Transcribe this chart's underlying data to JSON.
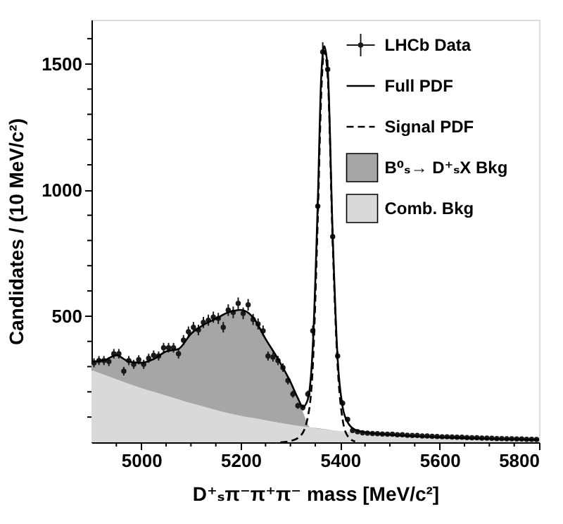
{
  "chart_data": {
    "type": "scatter",
    "xlabel": "D⁺ₛπ⁻π⁺π⁻ mass [MeV/c²]",
    "ylabel": "Candidates / (10 MeV/c²)",
    "xlim": [
      4900,
      5800
    ],
    "ylim": [
      0,
      1675
    ],
    "xticks": [
      {
        "value": 4950,
        "label": null
      },
      5000,
      {
        "value": 5050,
        "label": null
      },
      {
        "value": 5100,
        "label": null
      },
      {
        "value": 5150,
        "label": null
      },
      5200,
      {
        "value": 5250,
        "label": null
      },
      {
        "value": 5300,
        "label": null
      },
      {
        "value": 5350,
        "label": null
      },
      5400,
      {
        "value": 5450,
        "label": null
      },
      {
        "value": 5500,
        "label": null
      },
      {
        "value": 5550,
        "label": null
      },
      5600,
      {
        "value": 5650,
        "label": null
      },
      {
        "value": 5700,
        "label": null
      },
      {
        "value": 5750,
        "label": null
      },
      5800
    ],
    "yticks": [
      {
        "value": 100,
        "label": null
      },
      {
        "value": 200,
        "label": null
      },
      {
        "value": 300,
        "label": null
      },
      {
        "value": 400,
        "label": null
      },
      500,
      {
        "value": 600,
        "label": null
      },
      {
        "value": 700,
        "label": null
      },
      {
        "value": 800,
        "label": null
      },
      {
        "value": 900,
        "label": null
      },
      1000,
      {
        "value": 1100,
        "label": null
      },
      {
        "value": 1200,
        "label": null
      },
      {
        "value": 1300,
        "label": null
      },
      {
        "value": 1400,
        "label": null
      },
      1500,
      {
        "value": 1600,
        "label": null
      }
    ],
    "legend": "top right",
    "stacked": true,
    "series": [
      {
        "name": "LHCb Data",
        "color": "#1a1a1a",
        "marker": "circle",
        "x": [
          4905,
          4915,
          4925,
          4935,
          4945,
          4955,
          4965,
          4975,
          4985,
          4995,
          5005,
          5015,
          5025,
          5035,
          5045,
          5055,
          5065,
          5075,
          5085,
          5095,
          5105,
          5115,
          5125,
          5135,
          5145,
          5155,
          5165,
          5175,
          5185,
          5195,
          5205,
          5215,
          5225,
          5235,
          5245,
          5255,
          5265,
          5275,
          5285,
          5295,
          5305,
          5315,
          5325,
          5335,
          5345,
          5355,
          5365,
          5375,
          5385,
          5395,
          5405,
          5415,
          5425,
          5435,
          5445,
          5455,
          5465,
          5475,
          5485,
          5495,
          5505,
          5515,
          5525,
          5535,
          5545,
          5555,
          5565,
          5575,
          5585,
          5595,
          5605,
          5615,
          5625,
          5635,
          5645,
          5655,
          5665,
          5675,
          5685,
          5695,
          5705,
          5715,
          5725,
          5735,
          5745,
          5755,
          5765,
          5775,
          5785,
          5795
        ],
        "values": [
          315,
          324,
          324,
          320,
          351,
          351,
          282,
          324,
          309,
          327,
          309,
          333,
          345,
          342,
          375,
          375,
          375,
          351,
          405,
          438,
          456,
          445,
          475,
          484,
          496,
          491,
          456,
          524,
          515,
          551,
          511,
          545,
          487,
          469,
          442,
          342,
          338,
          324,
          296,
          245,
          191,
          145,
          138,
          191,
          442,
          936,
          1547,
          1478,
          815,
          342,
          155,
          91,
          47,
          42,
          38,
          36,
          35,
          34,
          33,
          32,
          32,
          30,
          30,
          28,
          27,
          27,
          25,
          25,
          24,
          23,
          22,
          22,
          21,
          20,
          20,
          19,
          18,
          18,
          17,
          17,
          16,
          15,
          15,
          14,
          14,
          13,
          13,
          12,
          12,
          11
        ],
        "errors": [
          18,
          18,
          18,
          18,
          19,
          19,
          17,
          18,
          18,
          18,
          18,
          18,
          19,
          18,
          19,
          19,
          19,
          19,
          20,
          21,
          21,
          21,
          22,
          22,
          22,
          22,
          21,
          23,
          23,
          23,
          23,
          23,
          22,
          22,
          21,
          18,
          18,
          18,
          17,
          16,
          14,
          12,
          12,
          14,
          21,
          31,
          39,
          38,
          29,
          18,
          12,
          10,
          7,
          6,
          6,
          6,
          6,
          6,
          6,
          6,
          6,
          5,
          5,
          5,
          5,
          5,
          5,
          5,
          5,
          5,
          5,
          5,
          5,
          4,
          4,
          4,
          4,
          4,
          4,
          4,
          4,
          4,
          4,
          4,
          4,
          4,
          4,
          3,
          3,
          3
        ]
      },
      {
        "name": "Full PDF",
        "type": "line",
        "color": "#000000",
        "line_style": "solid",
        "x": [
          4900,
          4925,
          4950,
          4975,
          5000,
          5025,
          5050,
          5075,
          5100,
          5125,
          5150,
          5175,
          5200,
          5225,
          5250,
          5275,
          5300,
          5315,
          5325,
          5335,
          5345,
          5355,
          5362,
          5368,
          5375,
          5385,
          5395,
          5405,
          5415,
          5430,
          5450,
          5500,
          5600,
          5700,
          5800
        ],
        "values": [
          320,
          325,
          345,
          320,
          315,
          330,
          360,
          370,
          430,
          465,
          490,
          515,
          525,
          495,
          410,
          330,
          240,
          175,
          140,
          170,
          380,
          950,
          1450,
          1570,
          1480,
          820,
          330,
          140,
          80,
          50,
          40,
          30,
          20,
          14,
          10
        ]
      },
      {
        "name": "Signal PDF",
        "type": "line",
        "color": "#000000",
        "line_style": "dashed",
        "x": [
          5280,
          5300,
          5320,
          5335,
          5345,
          5355,
          5362,
          5368,
          5375,
          5385,
          5395,
          5405,
          5415,
          5430
        ],
        "values": [
          0,
          5,
          25,
          100,
          300,
          880,
          1380,
          1550,
          1450,
          790,
          300,
          90,
          25,
          3
        ]
      },
      {
        "name": "Comb. Bkg",
        "type": "area",
        "color": "#d9d9d9",
        "x": [
          4900,
          4925,
          4950,
          4975,
          5000,
          5025,
          5050,
          5075,
          5100,
          5125,
          5150,
          5175,
          5200,
          5225,
          5250,
          5275,
          5300,
          5325,
          5340,
          5400,
          5500,
          5600,
          5700,
          5800
        ],
        "values": [
          287,
          268,
          250,
          232,
          215,
          200,
          185,
          170,
          155,
          142,
          128,
          116,
          105,
          96,
          87,
          78,
          70,
          63,
          59,
          45,
          30,
          20,
          14,
          10
        ]
      },
      {
        "name": "B⁰ₛ→ D⁺ₛX Bkg",
        "type": "area",
        "color": "#a6a6a6",
        "x": [
          4900,
          4925,
          4950,
          4975,
          5000,
          5025,
          5050,
          5075,
          5100,
          5125,
          5150,
          5175,
          5200,
          5225,
          5250,
          5275,
          5300,
          5325,
          5340,
          5400,
          5500,
          5600,
          5700,
          5800
        ],
        "values": [
          33,
          57,
          95,
          88,
          100,
          130,
          175,
          200,
          275,
          323,
          362,
          399,
          420,
          399,
          323,
          252,
          170,
          57,
          0,
          0,
          0,
          0,
          0,
          0
        ]
      }
    ]
  }
}
